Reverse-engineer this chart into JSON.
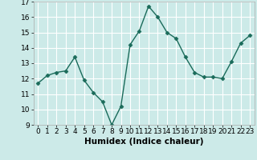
{
  "x": [
    0,
    1,
    2,
    3,
    4,
    5,
    6,
    7,
    8,
    9,
    10,
    11,
    12,
    13,
    14,
    15,
    16,
    17,
    18,
    19,
    20,
    21,
    22,
    23
  ],
  "y": [
    11.7,
    12.2,
    12.4,
    12.5,
    13.4,
    11.9,
    11.1,
    10.5,
    9.0,
    10.2,
    14.2,
    15.1,
    16.7,
    16.0,
    15.0,
    14.6,
    13.4,
    12.4,
    12.1,
    12.1,
    12.0,
    13.1,
    14.3,
    14.8
  ],
  "line_color": "#1a6b5a",
  "marker": "D",
  "marker_size": 2.5,
  "bg_color": "#cceae8",
  "grid_color": "#ffffff",
  "xlabel": "Humidex (Indice chaleur)",
  "ylim": [
    9,
    17
  ],
  "xlim": [
    -0.5,
    23.5
  ],
  "yticks": [
    9,
    10,
    11,
    12,
    13,
    14,
    15,
    16,
    17
  ],
  "xticks": [
    0,
    1,
    2,
    3,
    4,
    5,
    6,
    7,
    8,
    9,
    10,
    11,
    12,
    13,
    14,
    15,
    16,
    17,
    18,
    19,
    20,
    21,
    22,
    23
  ],
  "xlabel_fontsize": 7.5,
  "tick_fontsize": 6.5,
  "linewidth": 1.0
}
